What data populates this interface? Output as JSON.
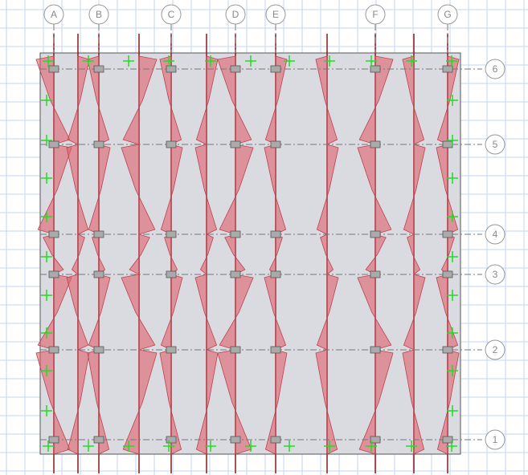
{
  "grid": {
    "columns": [
      {
        "label": "A"
      },
      {
        "label": "B"
      },
      {
        "label": "C"
      },
      {
        "label": "D"
      },
      {
        "label": "E"
      },
      {
        "label": "F"
      },
      {
        "label": "G"
      }
    ],
    "rows": [
      {
        "label": "6"
      },
      {
        "label": "5"
      },
      {
        "label": "4"
      },
      {
        "label": "3"
      },
      {
        "label": "2"
      },
      {
        "label": "1"
      }
    ]
  }
}
